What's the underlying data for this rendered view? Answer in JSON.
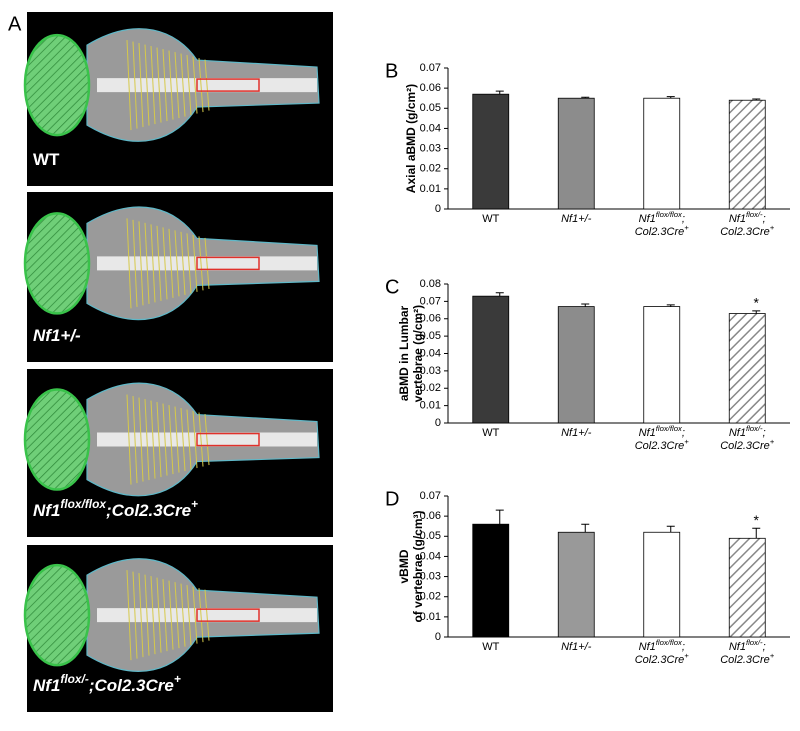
{
  "panel_a": {
    "label": "A",
    "images": [
      {
        "label": [
          {
            "text": "WT"
          }
        ],
        "italic": false
      },
      {
        "label": [
          {
            "text": "Nf1+/-"
          }
        ],
        "italic": true
      },
      {
        "label": [
          {
            "text": "Nf1"
          },
          {
            "text": "flox/flox",
            "sup": true
          },
          {
            "text": ";Col2.3Cre"
          },
          {
            "text": "+",
            "sup": true
          }
        ],
        "italic": true
      },
      {
        "label": [
          {
            "text": "Nf1"
          },
          {
            "text": "flox/-",
            "sup": true
          },
          {
            "text": ";Col2.3Cre"
          },
          {
            "text": "+",
            "sup": true
          }
        ],
        "italic": true
      }
    ]
  },
  "chart_data": [
    {
      "type": "bar",
      "panel_label": "B",
      "y_label": [
        "Axial aBMD (g/cm²)"
      ],
      "categories": [
        [
          [
            {
              "text": "WT"
            }
          ]
        ],
        [
          [
            {
              "text": "Nf1+/-"
            }
          ]
        ],
        [
          [
            {
              "text": "Nf1"
            },
            {
              "text": "flox/flox",
              "sup": true
            },
            {
              "text": ";"
            }
          ],
          [
            {
              "text": "Col2.3Cre"
            },
            {
              "text": "+",
              "sup": true
            }
          ]
        ],
        [
          [
            {
              "text": "Nf1"
            },
            {
              "text": "flox/-",
              "sup": true
            },
            {
              "text": ";"
            }
          ],
          [
            {
              "text": "Col2.3Cre"
            },
            {
              "text": "+",
              "sup": true
            }
          ]
        ]
      ],
      "category_italic": [
        false,
        true,
        true,
        true
      ],
      "values": [
        0.057,
        0.055,
        0.055,
        0.054
      ],
      "errors": [
        0.0015,
        0.0005,
        0.0008,
        0.0006
      ],
      "fills": [
        "#3a3a3a",
        "#8c8c8c",
        "#ffffff",
        "hatched"
      ],
      "ylim": [
        0,
        0.07
      ],
      "yticks": [
        0,
        0.01,
        0.02,
        0.03,
        0.04,
        0.05,
        0.06,
        0.07
      ]
    },
    {
      "type": "bar",
      "panel_label": "C",
      "y_label": [
        "aBMD in Lumbar",
        "vertebrae (g/cm²)"
      ],
      "categories": [
        [
          [
            {
              "text": "WT"
            }
          ]
        ],
        [
          [
            {
              "text": "Nf1+/-"
            }
          ]
        ],
        [
          [
            {
              "text": "Nf1"
            },
            {
              "text": "flox/flox",
              "sup": true
            },
            {
              "text": ";"
            }
          ],
          [
            {
              "text": "Col2.3Cre"
            },
            {
              "text": "+",
              "sup": true
            }
          ]
        ],
        [
          [
            {
              "text": "Nf1"
            },
            {
              "text": "flox/-",
              "sup": true
            },
            {
              "text": ";"
            }
          ],
          [
            {
              "text": "Col2.3Cre"
            },
            {
              "text": "+",
              "sup": true
            }
          ]
        ]
      ],
      "category_italic": [
        false,
        true,
        true,
        true
      ],
      "values": [
        0.073,
        0.067,
        0.067,
        0.063
      ],
      "errors": [
        0.002,
        0.0015,
        0.001,
        0.0015
      ],
      "fills": [
        "#3a3a3a",
        "#8c8c8c",
        "#ffffff",
        "hatched"
      ],
      "annotations": [
        {
          "index": 3,
          "text": "*"
        }
      ],
      "ylim": [
        0,
        0.08
      ],
      "yticks": [
        0,
        0.01,
        0.02,
        0.03,
        0.04,
        0.05,
        0.06,
        0.07,
        0.08
      ]
    },
    {
      "type": "bar",
      "panel_label": "D",
      "y_label": [
        "vBMD",
        "of vertebrae (g/cm³)"
      ],
      "categories": [
        [
          [
            {
              "text": "WT"
            }
          ]
        ],
        [
          [
            {
              "text": "Nf1+/-"
            }
          ]
        ],
        [
          [
            {
              "text": "Nf1"
            },
            {
              "text": "flox/flox",
              "sup": true
            },
            {
              "text": ";"
            }
          ],
          [
            {
              "text": "Col2.3Cre"
            },
            {
              "text": "+",
              "sup": true
            }
          ]
        ],
        [
          [
            {
              "text": "Nf1"
            },
            {
              "text": "flox/-",
              "sup": true
            },
            {
              "text": ";"
            }
          ],
          [
            {
              "text": "Col2.3Cre"
            },
            {
              "text": "+",
              "sup": true
            }
          ]
        ]
      ],
      "category_italic": [
        false,
        true,
        true,
        true
      ],
      "values": [
        0.056,
        0.052,
        0.052,
        0.049
      ],
      "errors": [
        0.007,
        0.004,
        0.003,
        0.005
      ],
      "fills": [
        "#000000",
        "#999999",
        "#ffffff",
        "hatched"
      ],
      "annotations": [
        {
          "index": 3,
          "text": "*"
        }
      ],
      "ylim": [
        0,
        0.07
      ],
      "yticks": [
        0,
        0.01,
        0.02,
        0.03,
        0.04,
        0.05,
        0.06,
        0.07
      ]
    }
  ]
}
